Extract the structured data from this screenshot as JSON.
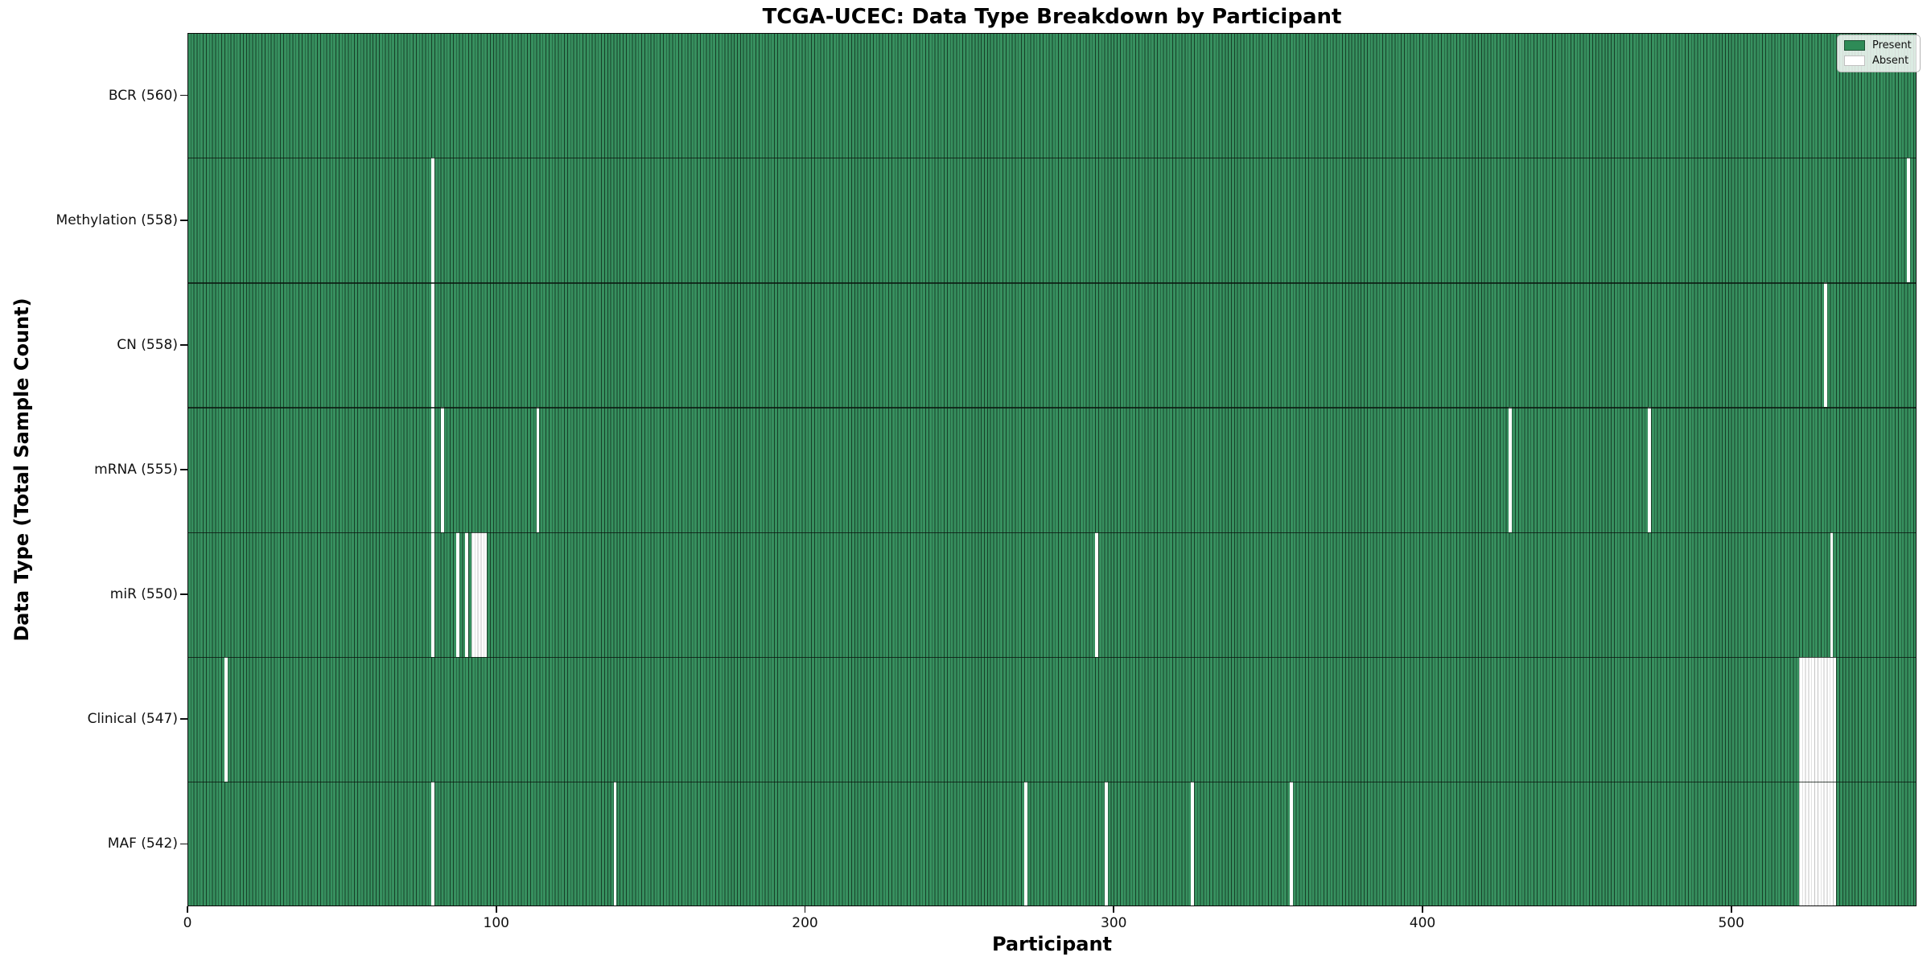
{
  "chart_data": {
    "type": "heatmap",
    "title": "TCGA-UCEC: Data Type Breakdown by Participant",
    "xlabel": "Participant",
    "ylabel": "Data Type (Total Sample Count)",
    "x_ticks": [
      0,
      100,
      200,
      300,
      400,
      500
    ],
    "xlim": [
      0,
      560
    ],
    "n_participants": 560,
    "grid": false,
    "legend_position": "upper right",
    "legend": [
      {
        "label": "Present",
        "color": "#2e8b57"
      },
      {
        "label": "Absent",
        "color": "#ffffff"
      }
    ],
    "present_color": "#2e8b57",
    "bar_edge_color": "#173f28",
    "absent_color": "#ffffff",
    "absent_edge_color": "#c3c3c3",
    "rows": [
      {
        "label": "BCR (560)",
        "data_type": "BCR",
        "present_total": 560,
        "absent_participants": []
      },
      {
        "label": "Methylation (558)",
        "data_type": "Methylation",
        "present_total": 558,
        "absent_participants": [
          79,
          557
        ]
      },
      {
        "label": "CN (558)",
        "data_type": "CN",
        "present_total": 558,
        "absent_participants": [
          79,
          530
        ]
      },
      {
        "label": "mRNA (555)",
        "data_type": "mRNA",
        "present_total": 555,
        "absent_participants": [
          79,
          82,
          113,
          428,
          473
        ]
      },
      {
        "label": "miR (550)",
        "data_type": "miR",
        "present_total": 550,
        "absent_participants": [
          79,
          87,
          90,
          92,
          93,
          94,
          95,
          96,
          294,
          532
        ]
      },
      {
        "label": "Clinical (547)",
        "data_type": "Clinical",
        "present_total": 547,
        "absent_participants": [
          12,
          522,
          523,
          524,
          525,
          526,
          527,
          528,
          529,
          530,
          531,
          532,
          533
        ]
      },
      {
        "label": "MAF (542)",
        "data_type": "MAF",
        "present_total": 542,
        "absent_participants": [
          79,
          138,
          271,
          297,
          325,
          357,
          522,
          523,
          524,
          525,
          526,
          527,
          528,
          529,
          530,
          531,
          532,
          533
        ]
      }
    ]
  }
}
